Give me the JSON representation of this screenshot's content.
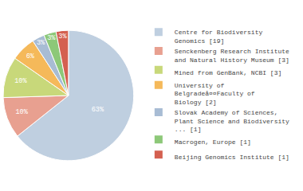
{
  "chart_data": {
    "type": "pie",
    "categories": [
      "Centre for Biodiversity\nGenomics [19]",
      "Senckenberg Research Institute\nand Natural History Museum [3]",
      "Mined from GenBank, NCBI [3]",
      "University of\nBelgradeå¤¤Faculty of\nBiology [2]",
      "Slovak Academy of Sciences,\nPlant Science and Biodiversity\n... [1]",
      "Macrogen, Europe [1]",
      "Beijing Genomics Institute [1]"
    ],
    "values": [
      63,
      10,
      10,
      6,
      3,
      3,
      3
    ],
    "value_labels": [
      "63%",
      "10%",
      "10%",
      "6%",
      "3%",
      "3%",
      "3%"
    ],
    "colors": [
      "#bfcfe0",
      "#e8a090",
      "#c8d87a",
      "#f5b95a",
      "#a8bcd4",
      "#8dc878",
      "#d46050"
    ],
    "data_labels": true,
    "legend": "right"
  }
}
